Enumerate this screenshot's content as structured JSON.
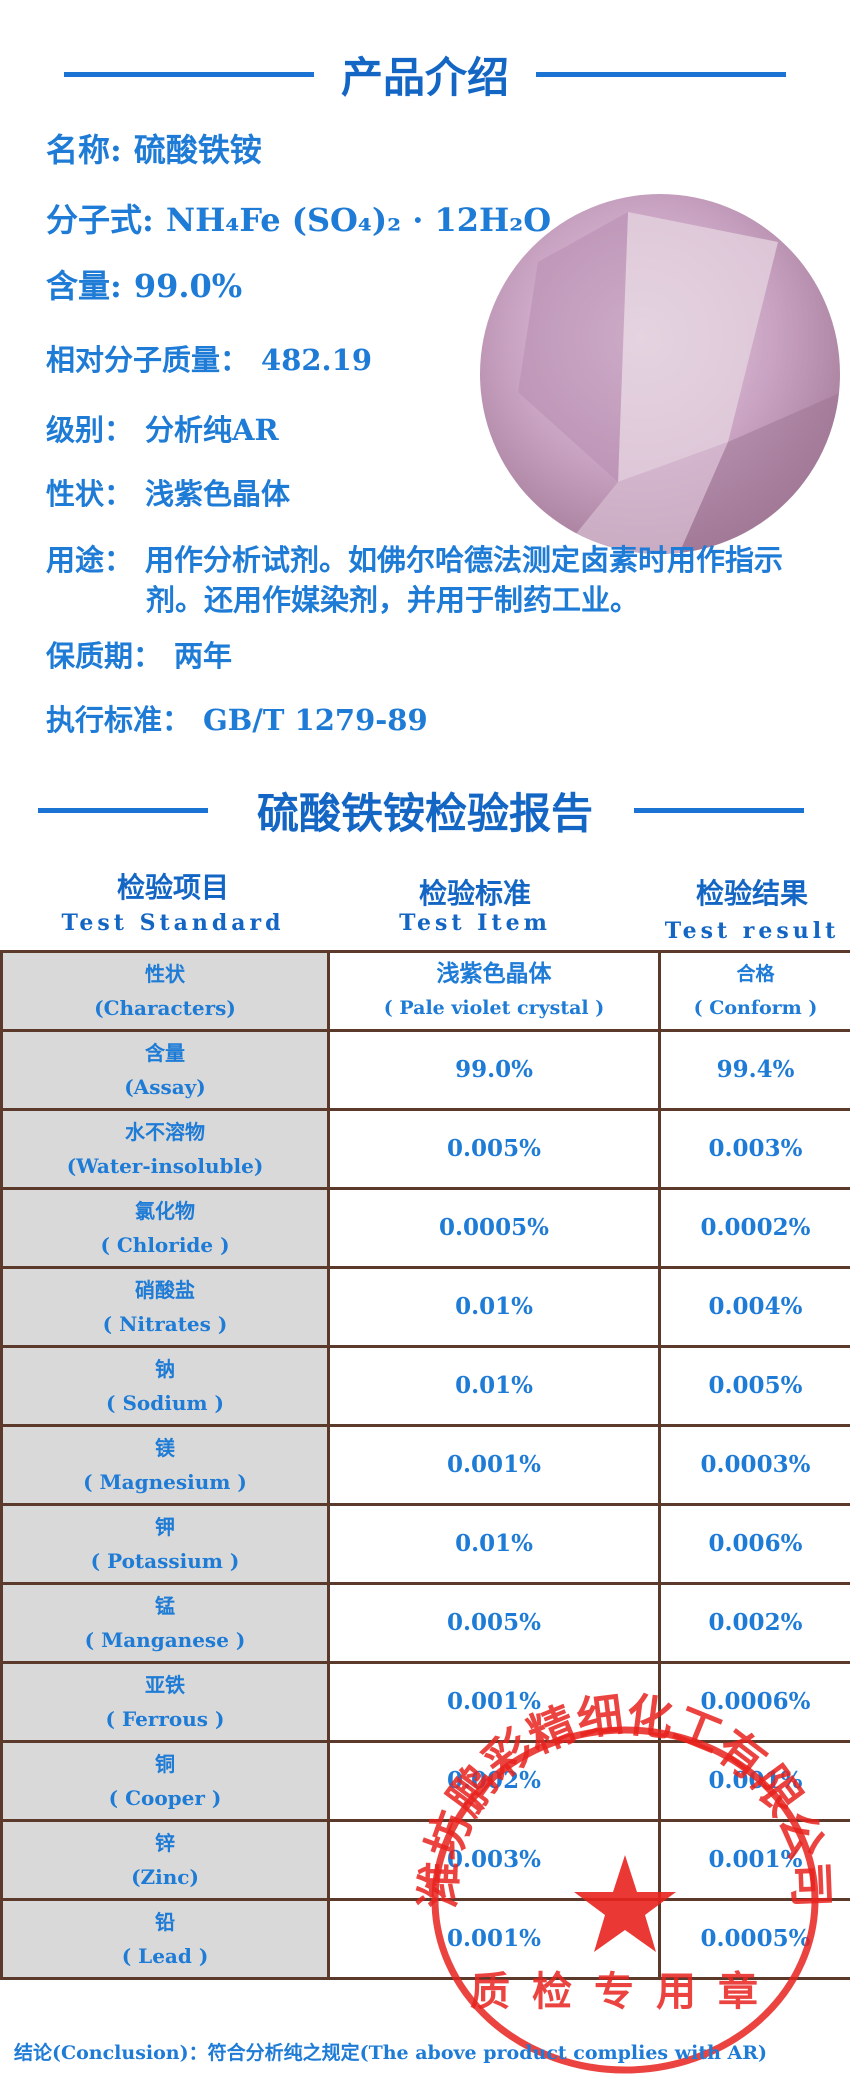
{
  "intro": {
    "title": "产品介绍",
    "fields": [
      {
        "label": "名称:",
        "value": "硫酸铁铵"
      },
      {
        "label": "分子式:",
        "value": "NH₄Fe (SO₄)₂ · 12H₂O"
      },
      {
        "label": "含量:",
        "value": "99.0%"
      },
      {
        "label": "相对分子质量：",
        "value": "482.19"
      },
      {
        "label": "级别：",
        "value": "分析纯AR"
      },
      {
        "label": "性状：",
        "value": "浅紫色晶体"
      },
      {
        "label": "用途：",
        "value": "用作分析试剂。如佛尔哈德法测定卤素时用作指示剂。还用作媒染剂，并用于制药工业。"
      },
      {
        "label": "保质期：",
        "value": "两年"
      },
      {
        "label": "执行标准：",
        "value": "GB/T 1279-89"
      }
    ]
  },
  "report": {
    "title": "硫酸铁铵检验报告",
    "headers": [
      {
        "cn": "检验项目",
        "en": "Test Standard"
      },
      {
        "cn": "检验标准",
        "en": "Test Item"
      },
      {
        "cn": "检验结果",
        "en": "Test result"
      }
    ],
    "rows": [
      {
        "item_cn": "性状",
        "item_en": "(Characters)",
        "standard": "浅紫色晶体",
        "standard_en": "( Pale violet crystal )",
        "result": "合格",
        "result_en": "( Conform )"
      },
      {
        "item_cn": "含量",
        "item_en": "(Assay)",
        "standard": "99.0%",
        "result": "99.4%"
      },
      {
        "item_cn": "水不溶物",
        "item_en": "(Water-insoluble)",
        "standard": "0.005%",
        "result": "0.003%"
      },
      {
        "item_cn": "氯化物",
        "item_en": "( Chloride )",
        "standard": "0.0005%",
        "result": "0.0002%"
      },
      {
        "item_cn": "硝酸盐",
        "item_en": "( Nitrates )",
        "standard": "0.01%",
        "result": "0.004%"
      },
      {
        "item_cn": "钠",
        "item_en": "( Sodium )",
        "standard": "0.01%",
        "result": "0.005%"
      },
      {
        "item_cn": "镁",
        "item_en": "( Magnesium )",
        "standard": "0.001%",
        "result": "0.0003%"
      },
      {
        "item_cn": "钾",
        "item_en": "( Potassium )",
        "standard": "0.01%",
        "result": "0.006%"
      },
      {
        "item_cn": "锰",
        "item_en": "( Manganese )",
        "standard": "0.005%",
        "result": "0.002%"
      },
      {
        "item_cn": "亚铁",
        "item_en": "( Ferrous )",
        "standard": "0.001%",
        "result": "0.0006%"
      },
      {
        "item_cn": "铜",
        "item_en": "( Cooper )",
        "standard": "0.002%",
        "result": "0.001%"
      },
      {
        "item_cn": "锌",
        "item_en": "(Zinc)",
        "standard": "0.003%",
        "result": "0.001%"
      },
      {
        "item_cn": "铅",
        "item_en": "( Lead )",
        "standard": "0.001%",
        "result": "0.0005%"
      }
    ],
    "conclusion": "结论(Conclusion)：符合分析纯之规定(The above product complies with AR)",
    "stamp": {
      "company": "潍坊鹏彩精细化工有限公司",
      "purpose": "质检专用章"
    }
  }
}
